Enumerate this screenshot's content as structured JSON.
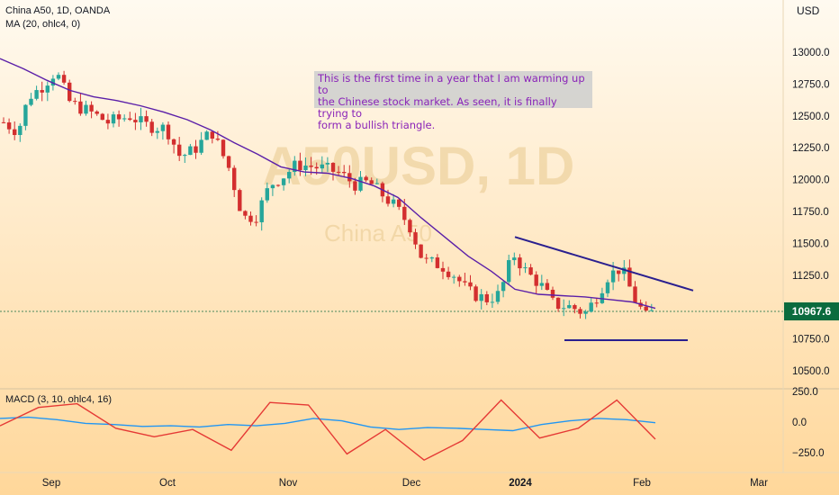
{
  "header": {
    "symbol_line": "China A50, 1D, OANDA",
    "ma_line": "MA (20, ohlc4, 0)",
    "currency": "USD"
  },
  "indicator": {
    "macd_label": "MACD (3, 10, ohlc4, 16)"
  },
  "annotation": {
    "text_line1": "This is the first time in a year that I am warming up to",
    "text_line2": "the Chinese stock market. As seen, it is finally trying to",
    "text_line3": "form a bullish triangle."
  },
  "watermark": {
    "symbol": "A50USD, 1D",
    "name": "China A50"
  },
  "last_price": "10967.6",
  "colors": {
    "up": "#26a69a",
    "down": "#d32f2f",
    "ma": "#5b1fa8",
    "trendline": "#2a1f8f",
    "macd": "#2196f3",
    "signal": "#e53935",
    "bg_top": "#fff8ea",
    "bg_bottom": "#ffd9a0"
  },
  "chart_data": {
    "type": "candlestick",
    "title": "China A50, 1D, OANDA",
    "y_axis": {
      "min": 10500,
      "max": 13000,
      "ticks": [
        "10500.0",
        "10750.0",
        "11000.0",
        "11250.0",
        "11500.0",
        "11750.0",
        "12000.0",
        "12250.0",
        "12500.0",
        "12750.0",
        "13000.0"
      ]
    },
    "x_axis": {
      "labels": [
        "Sep",
        "Oct",
        "Nov",
        "Dec",
        "2024",
        "Feb",
        "Mar"
      ]
    },
    "series": [
      {
        "name": "MA (20, ohlc4, 0)",
        "values_sampled": [
          12950,
          12870,
          12780,
          12700,
          12650,
          12620,
          12580,
          12530,
          12470,
          12390,
          12290,
          12200,
          12100,
          12060,
          12050,
          12010,
          11950,
          11860,
          11700,
          11550,
          11400,
          11280,
          11140,
          11100,
          11090,
          11080,
          11060,
          11040,
          10990
        ]
      },
      {
        "name": "MACD",
        "values_sampled": [
          30,
          40,
          20,
          -10,
          -20,
          -35,
          -30,
          -40,
          -20,
          -30,
          -10,
          30,
          10,
          -40,
          -60,
          -45,
          -50,
          -60,
          -70,
          -20,
          10,
          30,
          20,
          -5
        ]
      },
      {
        "name": "Signal",
        "values_sampled": [
          -30,
          120,
          150,
          -50,
          -120,
          -60,
          -230,
          160,
          140,
          -260,
          -60,
          -310,
          -150,
          180,
          -130,
          -50,
          180,
          -140
        ]
      }
    ],
    "trendlines": [
      {
        "from": {
          "date": "2024-01-10",
          "price": 11550
        },
        "to": {
          "date": "2024-02-20",
          "price": 11130
        }
      },
      {
        "from": {
          "date": "2024-01-13",
          "price": 10740
        },
        "to": {
          "date": "2024-02-12",
          "price": 10740
        }
      }
    ],
    "last_value": 10967.6,
    "macd_axis": {
      "ticks": [
        "250.0",
        "0.0",
        "−250.0"
      ]
    }
  }
}
